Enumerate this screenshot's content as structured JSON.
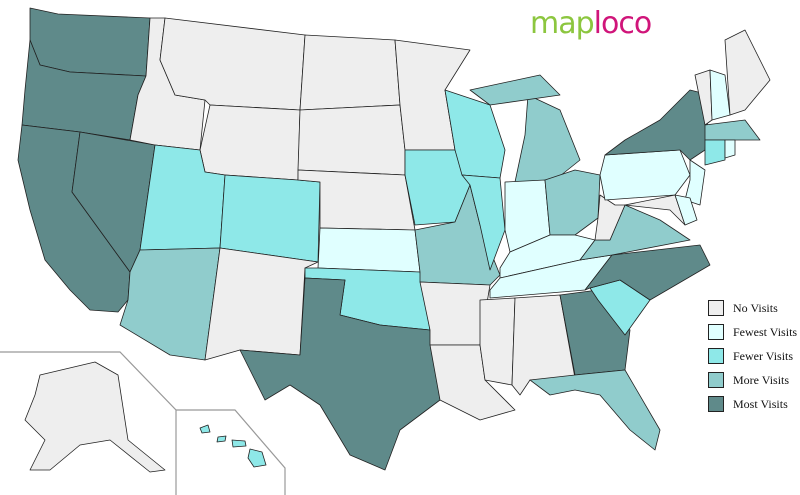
{
  "logo": {
    "part1": "map",
    "part2": "loco"
  },
  "legend": [
    {
      "label": "No Visits",
      "color": "#eeeeee"
    },
    {
      "label": "Fewest Visits",
      "color": "#e0ffff"
    },
    {
      "label": "Fewer Visits",
      "color": "#8ee8e8"
    },
    {
      "label": "More Visits",
      "color": "#90cccc"
    },
    {
      "label": "Most Visits",
      "color": "#5f8a8a"
    }
  ],
  "states": {
    "WA": 4,
    "OR": 4,
    "CA": 4,
    "NV": 4,
    "TX": 4,
    "NC": 4,
    "GA": 4,
    "NY": 4,
    "AZ": 3,
    "MO": 3,
    "MI": 3,
    "OH": 3,
    "VA": 3,
    "FL": 3,
    "MA": 3,
    "UT": 2,
    "CO": 2,
    "IA": 2,
    "WI": 2,
    "IL": 2,
    "OK": 2,
    "SC": 2,
    "CT": 2,
    "HI": 2,
    "KS": 1,
    "KY": 1,
    "TN": 1,
    "IN": 1,
    "PA": 1,
    "NJ": 1,
    "NH": 1,
    "RI": 1,
    "DE": 1,
    "ID": 0,
    "MT": 0,
    "WY": 0,
    "NM": 0,
    "ND": 0,
    "SD": 0,
    "NE": 0,
    "MN": 0,
    "AR": 0,
    "LA": 0,
    "MS": 0,
    "AL": 0,
    "WV": 0,
    "MD": 0,
    "VT": 0,
    "ME": 0,
    "AK": 0
  }
}
